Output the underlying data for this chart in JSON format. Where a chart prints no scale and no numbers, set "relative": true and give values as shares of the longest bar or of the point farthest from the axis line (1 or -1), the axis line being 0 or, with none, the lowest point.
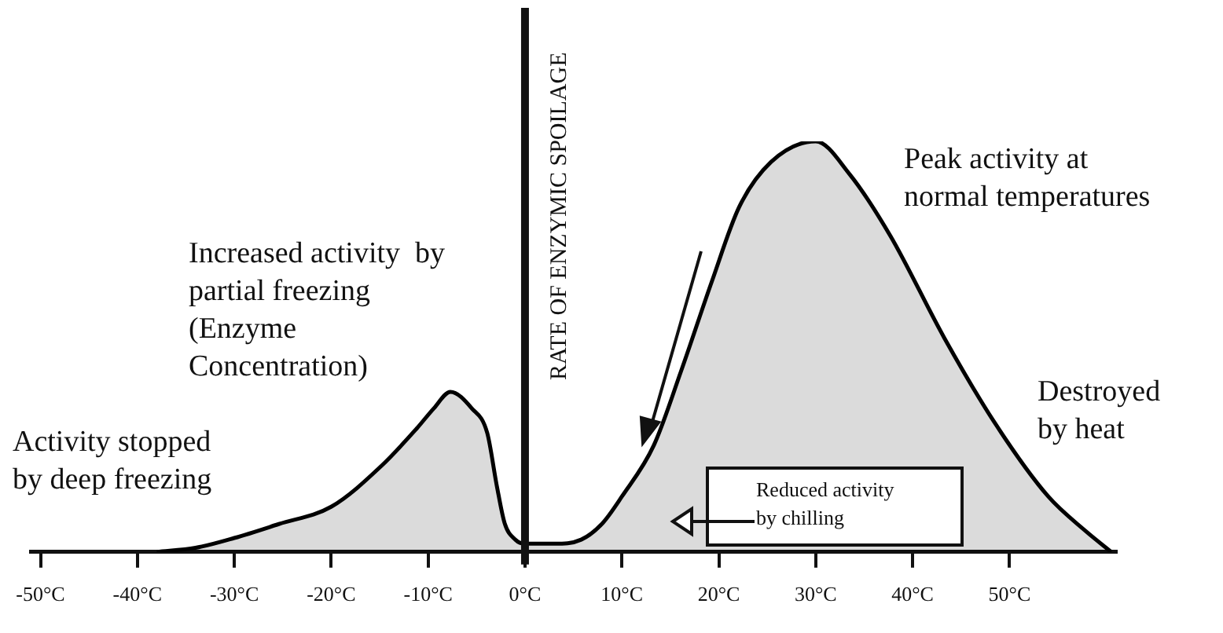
{
  "chart_data": {
    "type": "area",
    "relative": true,
    "ylabel": "RATE OF ENZYMIC SPOILAGE",
    "color": "#000000",
    "x": [
      -38,
      -34,
      -30,
      -25.4,
      -20,
      -14.8,
      -11.2,
      -9.4,
      -7.7,
      -5.5,
      -3.9,
      -2.9,
      -2.1,
      -1,
      0,
      3,
      5.8,
      8,
      10,
      13.3,
      16.1,
      19.3,
      22.1,
      25.4,
      30,
      33.5,
      37.7,
      43.3,
      48.6,
      54,
      57.9,
      60.5
    ],
    "values": [
      0,
      0.01,
      0.034,
      0.068,
      0.11,
      0.21,
      0.3,
      0.35,
      0.39,
      0.35,
      0.29,
      0.16,
      0.07,
      0.03,
      0.02,
      0.02,
      0.03,
      0.07,
      0.135,
      0.26,
      0.44,
      0.66,
      0.84,
      0.95,
      1,
      0.92,
      0.77,
      0.52,
      0.31,
      0.135,
      0.05,
      0
    ],
    "xlim": [
      -51,
      61
    ],
    "xticks": [
      {
        "value": -50,
        "label": "-50°C"
      },
      {
        "value": -40,
        "label": "-40°C"
      },
      {
        "value": -30,
        "label": "-30°C"
      },
      {
        "value": -20,
        "label": "-20°C"
      },
      {
        "value": -10,
        "label": "-10°C"
      },
      {
        "value": 0,
        "label": "0°C"
      },
      {
        "value": 10,
        "label": "10°C"
      },
      {
        "value": 20,
        "label": "20°C"
      },
      {
        "value": 30,
        "label": "30°C"
      },
      {
        "value": 40,
        "label": "40°C"
      },
      {
        "value": 50,
        "label": "50°C"
      }
    ],
    "ref_lines": [
      {
        "axis": "x",
        "value": 0
      }
    ],
    "annotations": [
      "Increased activity  by\npartial freezing\n(Enzyme\nConcentration)",
      "Activity stopped\nby deep freezing",
      "Peak activity at\nnormal temperatures",
      "Destroyed\nby heat",
      "Reduced activity\nby chilling"
    ]
  }
}
